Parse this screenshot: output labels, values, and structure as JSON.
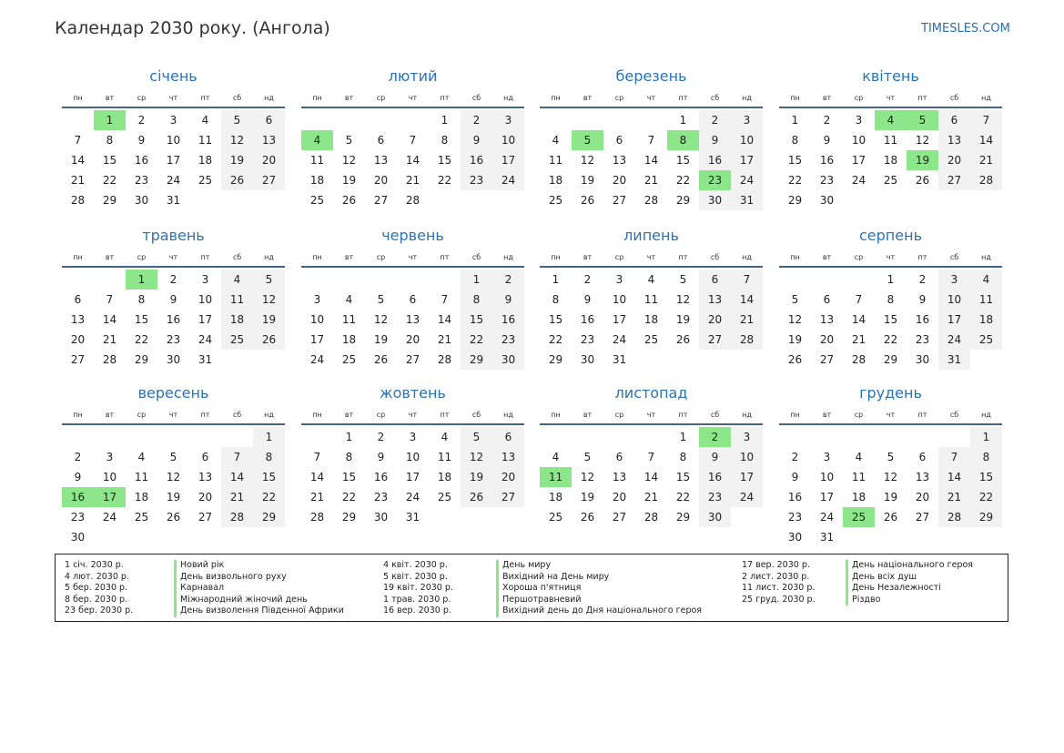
{
  "page": {
    "title": "Календар 2030 року. (Ангола)",
    "site": "TIMESLES.COM"
  },
  "weekdays": [
    "пн",
    "вт",
    "ср",
    "чт",
    "пт",
    "сб",
    "нд"
  ],
  "months": [
    {
      "name": "січень",
      "offset": 1,
      "days": 31,
      "holidays": [
        1
      ]
    },
    {
      "name": "лютий",
      "offset": 4,
      "days": 28,
      "holidays": [
        4
      ]
    },
    {
      "name": "березень",
      "offset": 4,
      "days": 31,
      "holidays": [
        5,
        8,
        23
      ]
    },
    {
      "name": "квітень",
      "offset": 0,
      "days": 30,
      "holidays": [
        4,
        5,
        19
      ]
    },
    {
      "name": "травень",
      "offset": 2,
      "days": 31,
      "holidays": [
        1
      ]
    },
    {
      "name": "червень",
      "offset": 5,
      "days": 30,
      "holidays": []
    },
    {
      "name": "липень",
      "offset": 0,
      "days": 31,
      "holidays": []
    },
    {
      "name": "серпень",
      "offset": 3,
      "days": 31,
      "holidays": []
    },
    {
      "name": "вересень",
      "offset": 6,
      "days": 30,
      "holidays": [
        16,
        17
      ]
    },
    {
      "name": "жовтень",
      "offset": 1,
      "days": 31,
      "holidays": []
    },
    {
      "name": "листопад",
      "offset": 4,
      "days": 30,
      "holidays": [
        2,
        11
      ]
    },
    {
      "name": "грудень",
      "offset": 6,
      "days": 31,
      "holidays": [
        25
      ]
    }
  ],
  "legend": [
    [
      {
        "date": "1 січ. 2030 р.",
        "name": "Новий рік"
      },
      {
        "date": "4 лют. 2030 р.",
        "name": "День визвольного руху"
      },
      {
        "date": "5 бер. 2030 р.",
        "name": "Карнавал"
      },
      {
        "date": "8 бер. 2030 р.",
        "name": "Міжнародний жіночий день"
      },
      {
        "date": "23 бер. 2030 р.",
        "name": "День визволення Південної Африки"
      }
    ],
    [
      {
        "date": "4 квіт. 2030 р.",
        "name": "День миру"
      },
      {
        "date": "5 квіт. 2030 р.",
        "name": "Вихідний на День миру"
      },
      {
        "date": "19 квіт. 2030 р.",
        "name": "Хороша п'ятниця"
      },
      {
        "date": "1 трав. 2030 р.",
        "name": "Першотравневий"
      },
      {
        "date": "16 вер. 2030 р.",
        "name": "Вихідний день до Дня національного героя"
      }
    ],
    [
      {
        "date": "17 вер. 2030 р.",
        "name": "День національного героя"
      },
      {
        "date": "2 лист. 2030 р.",
        "name": "День всіх душ"
      },
      {
        "date": "11 лист. 2030 р.",
        "name": "День Незалежності"
      },
      {
        "date": "25 груд. 2030 р.",
        "name": "Різдво"
      }
    ]
  ],
  "colors": {
    "accent": "#2a73b6",
    "holiday": "#8ee68a",
    "weekend": "#f2f2f2",
    "rule": "#46648a"
  }
}
